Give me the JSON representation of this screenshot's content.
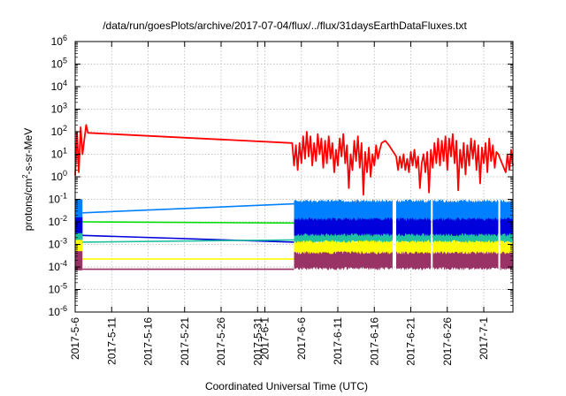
{
  "chart_data": {
    "type": "line",
    "title": "/data/run/goesPlots/archive/2017-07-04/flux/../flux/31daysEarthDataFluxes.txt",
    "xlabel": "Coordinated Universal Time (UTC)",
    "ylabel": {
      "pre": "protons/cm",
      "sup": "2",
      "post": "-s-sr-MeV"
    },
    "yscale": "log",
    "ylim_exp": [
      -6,
      6
    ],
    "yticks": [
      {
        "base": "10",
        "exp": "-6",
        "value": -6
      },
      {
        "base": "10",
        "exp": "-5",
        "value": -5
      },
      {
        "base": "10",
        "exp": "-4",
        "value": -4
      },
      {
        "base": "10",
        "exp": "-3",
        "value": -3
      },
      {
        "base": "10",
        "exp": "-2",
        "value": -2
      },
      {
        "base": "10",
        "exp": "-1",
        "value": -1
      },
      {
        "base": "10",
        "exp": "0",
        "value": 0
      },
      {
        "base": "10",
        "exp": "1",
        "value": 1
      },
      {
        "base": "10",
        "exp": "2",
        "value": 2
      },
      {
        "base": "10",
        "exp": "3",
        "value": 3
      },
      {
        "base": "10",
        "exp": "4",
        "value": 4
      },
      {
        "base": "10",
        "exp": "5",
        "value": 5
      },
      {
        "base": "10",
        "exp": "6",
        "value": 6
      }
    ],
    "xlim": [
      "2017-05-06",
      "2017-07-05"
    ],
    "xticks": [
      {
        "label": "2017-5-6",
        "date": "2017-05-06"
      },
      {
        "label": "2017-5-11",
        "date": "2017-05-11"
      },
      {
        "label": "2017-5-16",
        "date": "2017-05-16"
      },
      {
        "label": "2017-5-21",
        "date": "2017-05-21"
      },
      {
        "label": "2017-5-26",
        "date": "2017-05-26"
      },
      {
        "label": "2017-5-31",
        "date": "2017-05-31"
      },
      {
        "label": "2017-6-1",
        "date": "2017-06-01"
      },
      {
        "label": "2017-6-6",
        "date": "2017-06-06"
      },
      {
        "label": "2017-6-11",
        "date": "2017-06-11"
      },
      {
        "label": "2017-6-16",
        "date": "2017-06-16"
      },
      {
        "label": "2017-6-21",
        "date": "2017-06-21"
      },
      {
        "label": "2017-6-26",
        "date": "2017-06-26"
      },
      {
        "label": "2017-7-1",
        "date": "2017-07-01"
      }
    ],
    "grid": true,
    "series": [
      {
        "key": "red",
        "color": "#ff0000",
        "type": "line",
        "points": [
          [
            "2017-05-06T00:00",
            0.05
          ],
          [
            "2017-05-06T06:00",
            2.0
          ],
          [
            "2017-05-06T12:00",
            0.2
          ],
          [
            "2017-05-06T18:00",
            2.2
          ],
          [
            "2017-05-07T00:00",
            1.0
          ],
          [
            "2017-05-07T12:00",
            2.3
          ],
          [
            "2017-05-07T18:00",
            1.95
          ],
          [
            "2017-06-04T18:00",
            1.5
          ],
          [
            "2017-06-05T00:00",
            0.5
          ],
          [
            "2017-06-05T06:00",
            1.4
          ],
          [
            "2017-06-05T12:00",
            0.3
          ],
          [
            "2017-06-05T18:00",
            1.5
          ],
          [
            "2017-06-06T00:00",
            0.6
          ],
          [
            "2017-06-06T06:00",
            1.8
          ],
          [
            "2017-06-06T12:00",
            0.8
          ],
          [
            "2017-06-06T18:00",
            2.0
          ],
          [
            "2017-06-07T00:00",
            0.9
          ],
          [
            "2017-06-07T06:00",
            1.8
          ],
          [
            "2017-06-07T12:00",
            0.5
          ],
          [
            "2017-06-07T18:00",
            1.5
          ],
          [
            "2017-06-08T00:00",
            0.7
          ],
          [
            "2017-06-08T06:00",
            1.9
          ],
          [
            "2017-06-08T12:00",
            1.0
          ],
          [
            "2017-06-08T18:00",
            1.7
          ],
          [
            "2017-06-09T00:00",
            0.4
          ],
          [
            "2017-06-09T06:00",
            1.6
          ],
          [
            "2017-06-09T12:00",
            0.6
          ],
          [
            "2017-06-09T18:00",
            1.8
          ],
          [
            "2017-06-10T00:00",
            0.8
          ],
          [
            "2017-06-10T06:00",
            1.5
          ],
          [
            "2017-06-10T12:00",
            0.2
          ],
          [
            "2017-06-10T18:00",
            1.2
          ],
          [
            "2017-06-11T00:00",
            0.5
          ],
          [
            "2017-06-11T06:00",
            1.7
          ],
          [
            "2017-06-11T12:00",
            0.9
          ],
          [
            "2017-06-11T18:00",
            1.9
          ],
          [
            "2017-06-12T00:00",
            0.6
          ],
          [
            "2017-06-12T06:00",
            1.4
          ],
          [
            "2017-06-12T12:00",
            -0.5
          ],
          [
            "2017-06-12T18:00",
            1.0
          ],
          [
            "2017-06-13T00:00",
            0.3
          ],
          [
            "2017-06-13T06:00",
            1.6
          ],
          [
            "2017-06-13T12:00",
            0.7
          ],
          [
            "2017-06-13T18:00",
            1.8
          ],
          [
            "2017-06-14T00:00",
            0.4
          ],
          [
            "2017-06-14T06:00",
            1.5
          ],
          [
            "2017-06-14T12:00",
            -0.8
          ],
          [
            "2017-06-14T18:00",
            1.1
          ],
          [
            "2017-06-15T00:00",
            0.2
          ],
          [
            "2017-06-15T06:00",
            1.3
          ],
          [
            "2017-06-15T12:00",
            0.0
          ],
          [
            "2017-06-15T18:00",
            1.0
          ],
          [
            "2017-06-16T00:00",
            0.5
          ],
          [
            "2017-06-16T06:00",
            1.4
          ],
          [
            "2017-06-16T12:00",
            0.8
          ],
          [
            "2017-06-16T18:00",
            1.2
          ],
          [
            "2017-06-17T00:00",
            1.5
          ],
          [
            "2017-06-17T12:00",
            1.6
          ],
          [
            "2017-06-18T00:00",
            1.4
          ],
          [
            "2017-06-19T00:00",
            0.9
          ],
          [
            "2017-06-19T06:00",
            0.3
          ],
          [
            "2017-06-19T12:00",
            0.9
          ],
          [
            "2017-06-19T18:00",
            0.4
          ],
          [
            "2017-06-20T00:00",
            1.0
          ],
          [
            "2017-06-20T06:00",
            0.3
          ],
          [
            "2017-06-20T12:00",
            0.8
          ],
          [
            "2017-06-20T18:00",
            0.2
          ],
          [
            "2017-06-21T00:00",
            1.1
          ],
          [
            "2017-06-21T06:00",
            0.5
          ],
          [
            "2017-06-21T12:00",
            1.2
          ],
          [
            "2017-06-21T18:00",
            0.4
          ],
          [
            "2017-06-22T00:00",
            0.9
          ],
          [
            "2017-06-22T06:00",
            -0.5
          ],
          [
            "2017-06-22T12:00",
            0.6
          ],
          [
            "2017-06-22T18:00",
            1.0
          ],
          [
            "2017-06-23T00:00",
            0.2
          ],
          [
            "2017-06-23T06:00",
            1.1
          ],
          [
            "2017-06-23T12:00",
            -0.7
          ],
          [
            "2017-06-23T18:00",
            1.2
          ],
          [
            "2017-06-24T00:00",
            0.4
          ],
          [
            "2017-06-24T06:00",
            1.5
          ],
          [
            "2017-06-24T12:00",
            0.6
          ],
          [
            "2017-06-24T18:00",
            1.7
          ],
          [
            "2017-06-25T00:00",
            0.5
          ],
          [
            "2017-06-25T06:00",
            1.6
          ],
          [
            "2017-06-25T12:00",
            0.7
          ],
          [
            "2017-06-25T18:00",
            1.8
          ],
          [
            "2017-06-26T00:00",
            0.3
          ],
          [
            "2017-06-26T06:00",
            1.7
          ],
          [
            "2017-06-26T12:00",
            0.9
          ],
          [
            "2017-06-26T18:00",
            1.9
          ],
          [
            "2017-06-27T00:00",
            0.6
          ],
          [
            "2017-06-27T06:00",
            1.6
          ],
          [
            "2017-06-27T12:00",
            -0.6
          ],
          [
            "2017-06-27T18:00",
            1.2
          ],
          [
            "2017-06-28T00:00",
            0.4
          ],
          [
            "2017-06-28T06:00",
            1.5
          ],
          [
            "2017-06-28T12:00",
            0.1
          ],
          [
            "2017-06-28T18:00",
            1.4
          ],
          [
            "2017-06-29T00:00",
            0.5
          ],
          [
            "2017-06-29T06:00",
            1.7
          ],
          [
            "2017-06-29T12:00",
            0.8
          ],
          [
            "2017-06-29T18:00",
            1.6
          ],
          [
            "2017-06-30T00:00",
            0.3
          ],
          [
            "2017-06-30T06:00",
            1.4
          ],
          [
            "2017-06-30T12:00",
            -0.3
          ],
          [
            "2017-06-30T18:00",
            1.3
          ],
          [
            "2017-07-01T00:00",
            0.6
          ],
          [
            "2017-07-01T06:00",
            1.5
          ],
          [
            "2017-07-01T12:00",
            0.2
          ],
          [
            "2017-07-01T18:00",
            1.7
          ],
          [
            "2017-07-02T00:00",
            0.7
          ],
          [
            "2017-07-02T06:00",
            1.4
          ],
          [
            "2017-07-02T12:00",
            0.4
          ],
          [
            "2017-07-02T18:00",
            1.1
          ],
          [
            "2017-07-03T00:00",
            1.0
          ],
          [
            "2017-07-03T12:00",
            0.6
          ],
          [
            "2017-07-04T00:00",
            0.2
          ],
          [
            "2017-07-04T06:00",
            1.0
          ],
          [
            "2017-07-04T12:00",
            0.3
          ],
          [
            "2017-07-04T18:00",
            1.2
          ],
          [
            "2017-07-05T00:00",
            0.5
          ]
        ]
      },
      {
        "key": "lightblue",
        "color": "#0080ff",
        "type": "band",
        "low": -2.4,
        "high": -1.0,
        "gap_line": [
          [
            "2017-05-07T00:00",
            -1.6
          ],
          [
            "2017-06-05T00:00",
            -1.2
          ]
        ]
      },
      {
        "key": "green",
        "color": "#00dd00",
        "type": "band",
        "low": -2.6,
        "high": -1.9,
        "gap_line": [
          [
            "2017-05-07T00:00",
            -2.0
          ],
          [
            "2017-06-05T00:00",
            -2.05
          ]
        ]
      },
      {
        "key": "darkblue",
        "color": "#0000dd",
        "type": "band",
        "low": -2.8,
        "high": -1.8,
        "gap_line": [
          [
            "2017-05-07T00:00",
            -2.6
          ],
          [
            "2017-06-05T00:00",
            -2.9
          ]
        ]
      },
      {
        "key": "teal",
        "color": "#20c0a0",
        "type": "band",
        "low": -3.0,
        "high": -2.5,
        "gap_line": [
          [
            "2017-05-07T00:00",
            -2.9
          ],
          [
            "2017-06-05T00:00",
            -2.8
          ]
        ]
      },
      {
        "key": "yellow",
        "color": "#ffff00",
        "type": "band",
        "low": -3.7,
        "high": -2.8,
        "gap_line": [
          [
            "2017-05-07T00:00",
            -3.65
          ],
          [
            "2017-06-05T00:00",
            -3.65
          ]
        ]
      },
      {
        "key": "maroon",
        "color": "#993366",
        "type": "band",
        "low": -4.15,
        "high": -3.3,
        "gap_line": [
          [
            "2017-05-07T00:00",
            -4.1
          ],
          [
            "2017-06-05T00:00",
            -4.1
          ]
        ]
      }
    ],
    "data_segments": [
      [
        "2017-06-05T00:00",
        "2017-06-18T12:00"
      ],
      [
        "2017-06-19T00:00",
        "2017-06-23T18:00"
      ],
      [
        "2017-06-24T00:00",
        "2017-07-03T00:00"
      ],
      [
        "2017-07-03T06:00",
        "2017-07-05T00:00"
      ]
    ]
  }
}
